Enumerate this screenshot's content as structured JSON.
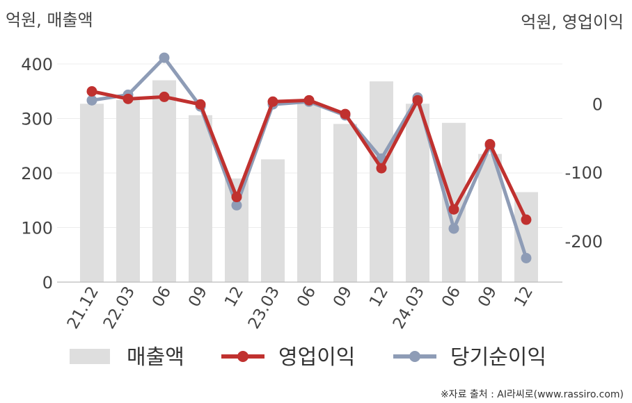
{
  "chart_data": {
    "type": "bar+line",
    "left_axis_title": "억원, 매출액",
    "right_axis_title": "억원, 영업이익",
    "categories": [
      "21.12",
      "22.03",
      "06",
      "09",
      "12",
      "23.03",
      "06",
      "09",
      "12",
      "24.03",
      "06",
      "09",
      "12"
    ],
    "left_ylim": [
      0,
      400
    ],
    "left_ticks": [
      0,
      100,
      200,
      300,
      400
    ],
    "right_ylim": [
      -260,
      58
    ],
    "right_ticks": [
      0,
      -100,
      -200
    ],
    "grid": true,
    "legend_position": "bottom",
    "series": [
      {
        "name": "매출액",
        "type": "bar",
        "axis": "left",
        "color": "#dedede",
        "values": [
          327,
          334,
          370,
          306,
          190,
          225,
          328,
          290,
          368,
          327,
          292,
          235,
          165
        ]
      },
      {
        "name": "영업이익",
        "type": "line",
        "axis": "right",
        "color": "#c0312f",
        "values": [
          18,
          7,
          10,
          -1,
          -136,
          3,
          5,
          -15,
          -94,
          5,
          -154,
          -59,
          -169
        ]
      },
      {
        "name": "당기순이익",
        "type": "line",
        "axis": "right",
        "color": "#8e9cb6",
        "values": [
          5,
          13,
          67,
          -4,
          -148,
          -1,
          3,
          -17,
          -80,
          9,
          -182,
          -61,
          -225
        ]
      }
    ]
  },
  "source": "※자료 출처 : AI라씨로(www.rassiro.com)"
}
